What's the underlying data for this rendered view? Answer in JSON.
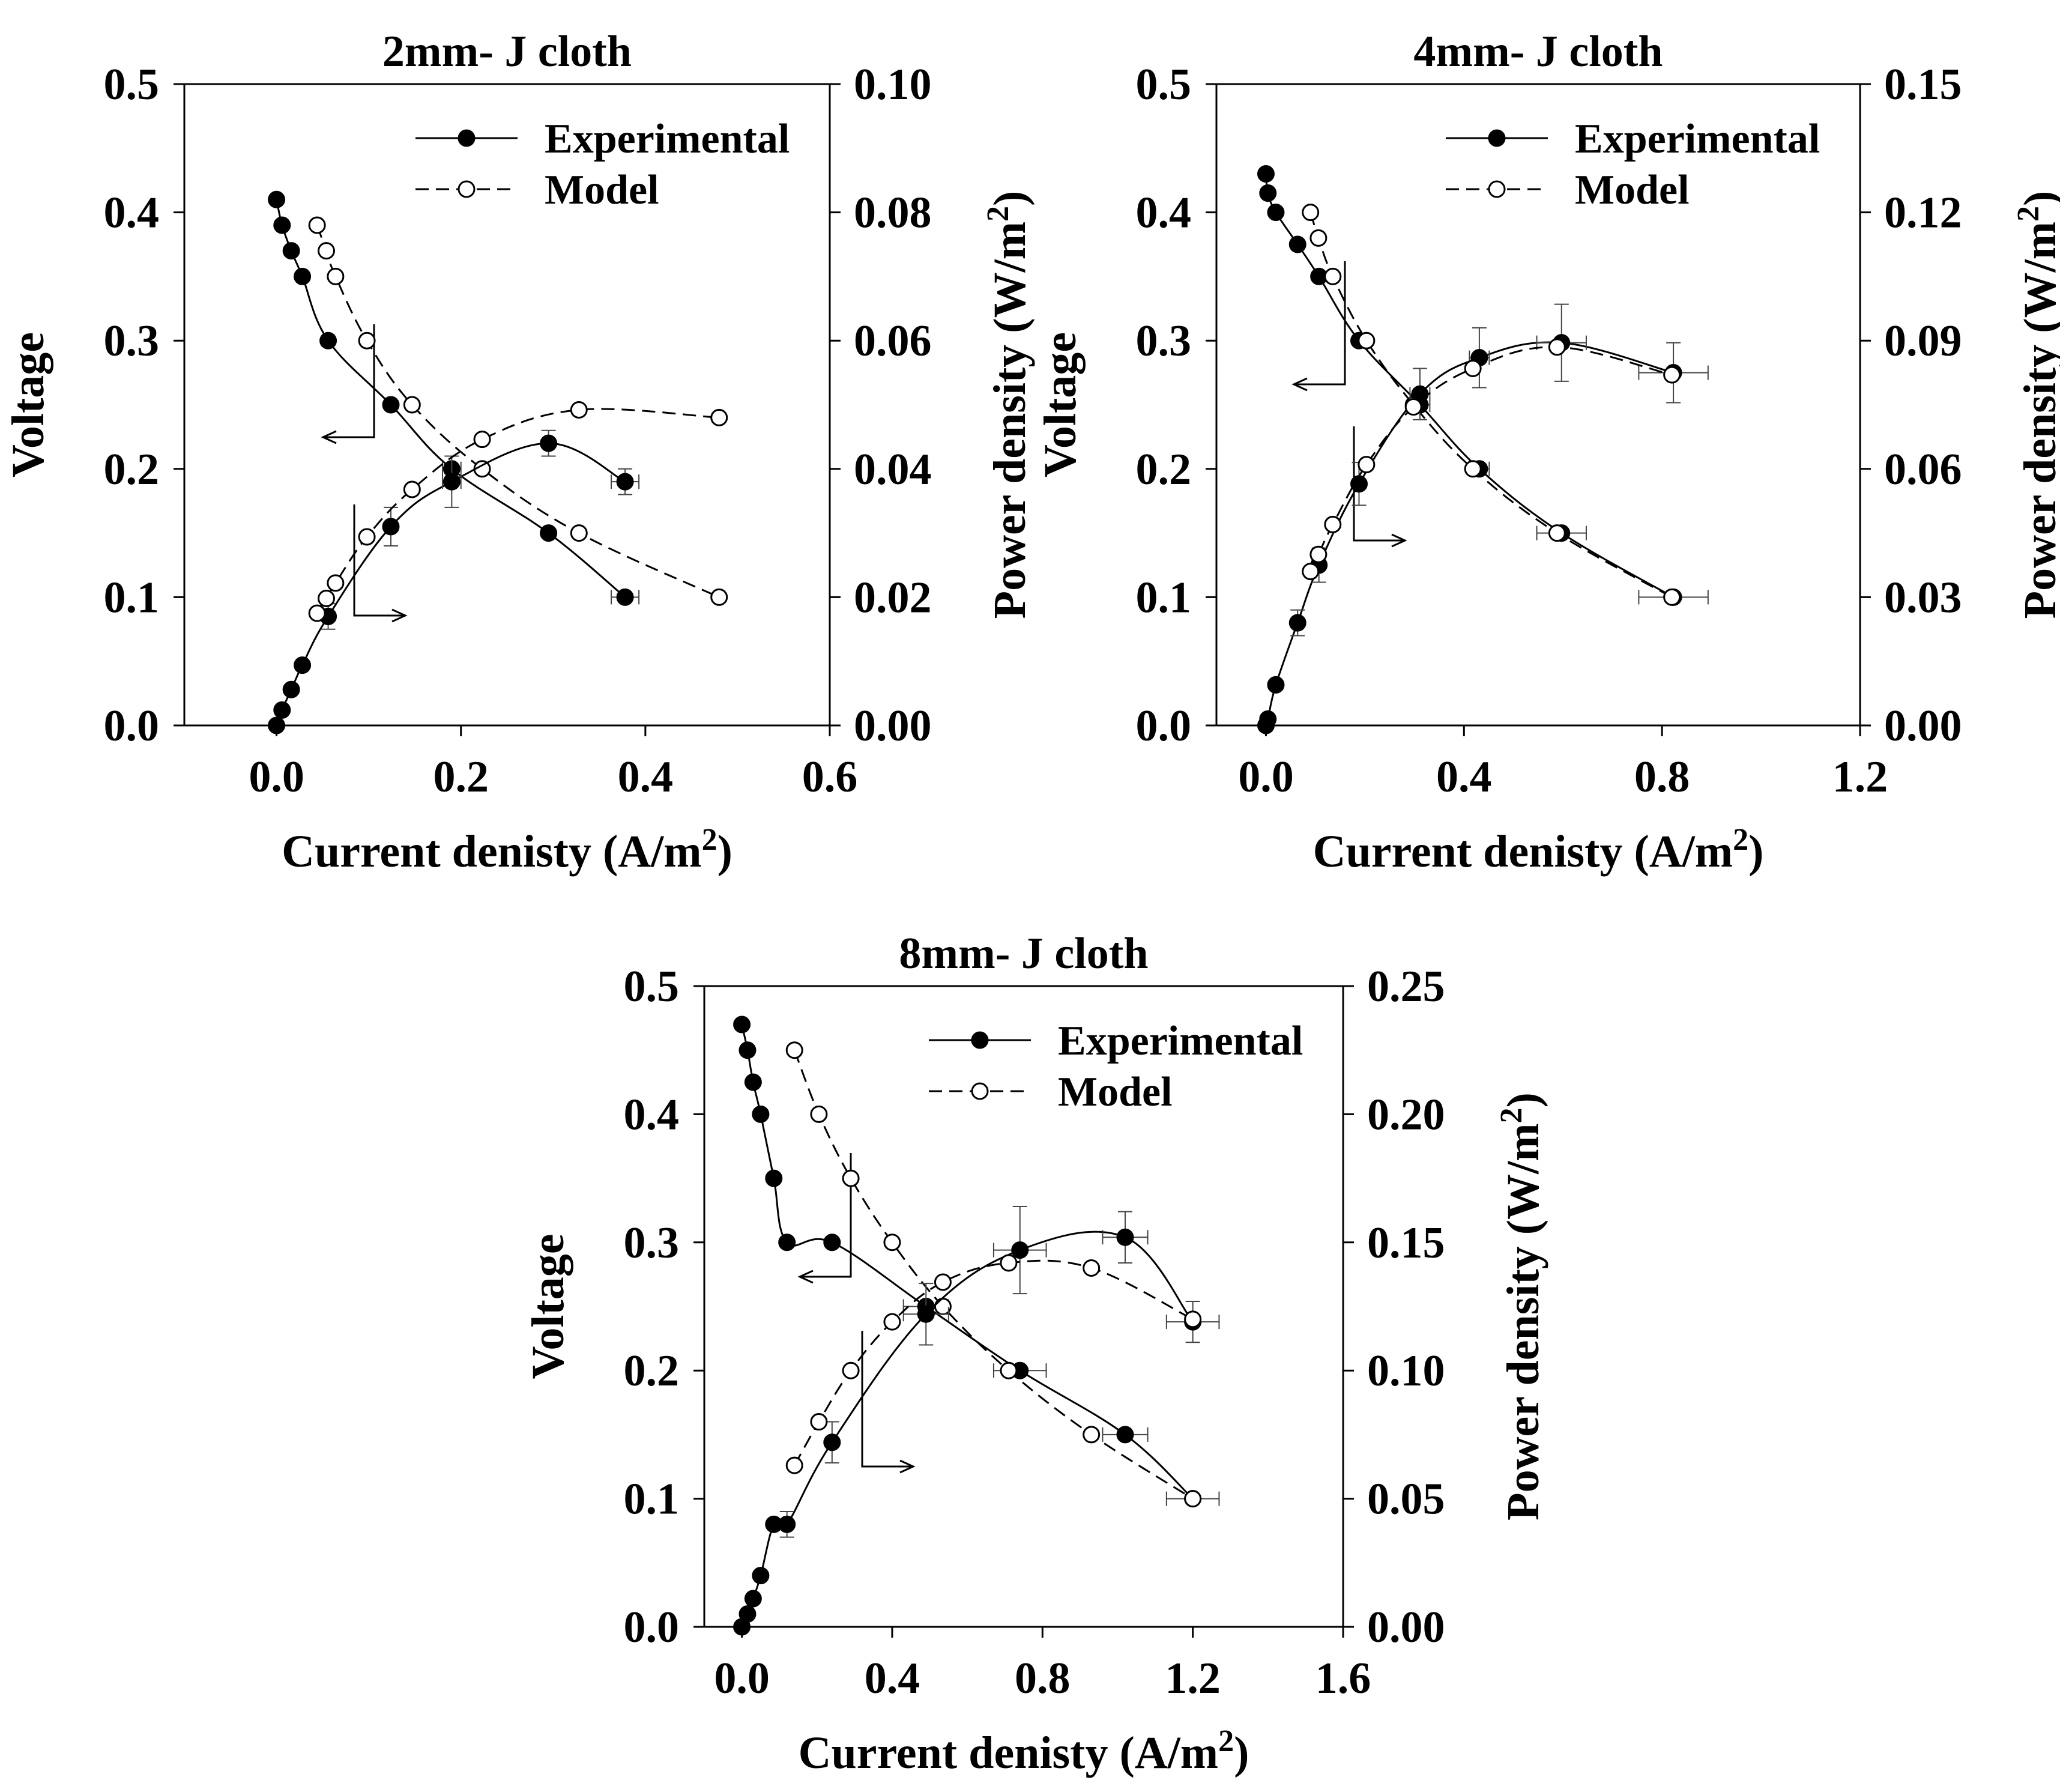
{
  "chart_data": [
    {
      "type": "line",
      "title": "2mm- J cloth",
      "xlabel": "Current denisty (A/m",
      "xlabel_sup": "2",
      "xlabel_end": ")",
      "ylabel": "Voltage",
      "y2label": "Power density (W/m",
      "y2label_sup": "2",
      "y2label_end": ")",
      "xlim": [
        -0.1,
        0.6
      ],
      "ylim": [
        0,
        0.5
      ],
      "y2lim": [
        0,
        0.1
      ],
      "xticks": [
        "0.0",
        "0.2",
        "0.4",
        "0.6"
      ],
      "xtick_values": [
        0,
        0.2,
        0.4,
        0.6
      ],
      "yticks": [
        "0.0",
        "0.1",
        "0.2",
        "0.3",
        "0.4",
        "0.5"
      ],
      "ytick_values": [
        0,
        0.1,
        0.2,
        0.3,
        0.4,
        0.5
      ],
      "y2ticks": [
        "0.00",
        "0.02",
        "0.04",
        "0.06",
        "0.08",
        "0.10"
      ],
      "y2tick_values": [
        0,
        0.02,
        0.04,
        0.06,
        0.08,
        0.1
      ],
      "legend": [
        "Experimental",
        "Model"
      ],
      "legend_position": "top-right",
      "series": [
        {
          "name": "Experimental",
          "axis": "voltage",
          "style": "solid-filled",
          "x": [
            0.0,
            0.006,
            0.016,
            0.028,
            0.056,
            0.124,
            0.19,
            0.295,
            0.378
          ],
          "y": [
            0.41,
            0.39,
            0.37,
            0.35,
            0.3,
            0.25,
            0.2,
            0.15,
            0.1
          ],
          "xerr": [
            0,
            0,
            0,
            0,
            0,
            0,
            0.01,
            0,
            0.015
          ],
          "yerr": [
            0,
            0,
            0,
            0,
            0,
            0,
            0,
            0,
            0
          ]
        },
        {
          "name": "Model",
          "axis": "voltage",
          "style": "dashed-open",
          "x": [
            0.044,
            0.054,
            0.064,
            0.098,
            0.147,
            0.223,
            0.328,
            0.48
          ],
          "y": [
            0.39,
            0.37,
            0.35,
            0.3,
            0.25,
            0.2,
            0.15,
            0.1
          ]
        },
        {
          "name": "Experimental",
          "axis": "power",
          "style": "solid-filled",
          "x": [
            0.0,
            0.006,
            0.016,
            0.028,
            0.056,
            0.124,
            0.19,
            0.295,
            0.378
          ],
          "y": [
            0.0,
            0.0024,
            0.0056,
            0.0094,
            0.017,
            0.031,
            0.038,
            0.044,
            0.038
          ],
          "xerr": [
            0,
            0,
            0,
            0,
            0,
            0,
            0.01,
            0,
            0.015
          ],
          "yerr": [
            0,
            0,
            0,
            0,
            0.002,
            0.003,
            0.004,
            0.002,
            0.002
          ]
        },
        {
          "name": "Model",
          "axis": "power",
          "style": "dashed-open",
          "x": [
            0.044,
            0.054,
            0.064,
            0.098,
            0.147,
            0.223,
            0.328,
            0.48
          ],
          "y": [
            0.0175,
            0.0198,
            0.0222,
            0.0294,
            0.0368,
            0.0446,
            0.0492,
            0.048
          ]
        }
      ]
    },
    {
      "type": "line",
      "title": "4mm- J cloth",
      "xlabel": "Current denisty (A/m",
      "xlabel_sup": "2",
      "xlabel_end": ")",
      "ylabel": "Voltage",
      "y2label": "Power density (W/m",
      "y2label_sup": "2",
      "y2label_end": ")",
      "xlim": [
        -0.1,
        1.2
      ],
      "ylim": [
        0,
        0.5
      ],
      "y2lim": [
        0,
        0.15
      ],
      "xticks": [
        "0.0",
        "0.4",
        "0.8",
        "1.2"
      ],
      "xtick_values": [
        0,
        0.4,
        0.8,
        1.2
      ],
      "yticks": [
        "0.0",
        "0.1",
        "0.2",
        "0.3",
        "0.4",
        "0.5"
      ],
      "ytick_values": [
        0,
        0.1,
        0.2,
        0.3,
        0.4,
        0.5
      ],
      "y2ticks": [
        "0.00",
        "0.03",
        "0.06",
        "0.09",
        "0.12",
        "0.15"
      ],
      "y2tick_values": [
        0,
        0.03,
        0.06,
        0.09,
        0.12,
        0.15
      ],
      "legend": [
        "Experimental",
        "Model"
      ],
      "legend_position": "top-right",
      "series": [
        {
          "name": "Experimental",
          "axis": "voltage",
          "style": "solid-filled",
          "x": [
            0.0,
            0.004,
            0.02,
            0.064,
            0.107,
            0.188,
            0.311,
            0.431,
            0.597,
            0.823
          ],
          "y": [
            0.43,
            0.415,
            0.4,
            0.375,
            0.35,
            0.3,
            0.25,
            0.2,
            0.15,
            0.1
          ],
          "xerr": [
            0,
            0,
            0,
            0,
            0,
            0,
            0.02,
            0.02,
            0.05,
            0.07
          ],
          "yerr": [
            0,
            0,
            0,
            0,
            0,
            0,
            0,
            0,
            0,
            0
          ]
        },
        {
          "name": "Model",
          "axis": "voltage",
          "style": "dashed-open",
          "x": [
            0.09,
            0.106,
            0.135,
            0.203,
            0.298,
            0.418,
            0.588,
            0.82
          ],
          "y": [
            0.4,
            0.38,
            0.35,
            0.3,
            0.25,
            0.2,
            0.15,
            0.1
          ]
        },
        {
          "name": "Experimental",
          "axis": "power",
          "style": "solid-filled",
          "x": [
            0.0,
            0.004,
            0.02,
            0.064,
            0.107,
            0.188,
            0.311,
            0.431,
            0.597,
            0.823
          ],
          "y": [
            0.0,
            0.0015,
            0.0095,
            0.024,
            0.0375,
            0.0565,
            0.0775,
            0.086,
            0.0895,
            0.0825
          ],
          "xerr": [
            0,
            0,
            0,
            0,
            0,
            0,
            0.02,
            0.02,
            0.05,
            0.07
          ],
          "yerr": [
            0,
            0,
            0,
            0.003,
            0.004,
            0.005,
            0.006,
            0.007,
            0.009,
            0.007
          ]
        },
        {
          "name": "Model",
          "axis": "power",
          "style": "dashed-open",
          "x": [
            0.09,
            0.106,
            0.135,
            0.203,
            0.298,
            0.418,
            0.588,
            0.82
          ],
          "y": [
            0.036,
            0.04,
            0.047,
            0.061,
            0.0745,
            0.0835,
            0.0885,
            0.082
          ]
        }
      ]
    },
    {
      "type": "line",
      "title": "8mm- J cloth",
      "xlabel": "Current denisty (A/m",
      "xlabel_sup": "2",
      "xlabel_end": ")",
      "ylabel": "Voltage",
      "y2label": "Power density (W/m",
      "y2label_sup": "2",
      "y2label_end": ")",
      "xlim": [
        -0.1,
        1.6
      ],
      "ylim": [
        0,
        0.5
      ],
      "y2lim": [
        0,
        0.25
      ],
      "xticks": [
        "0.0",
        "0.4",
        "0.8",
        "1.2",
        "1.6"
      ],
      "xtick_values": [
        0,
        0.4,
        0.8,
        1.2,
        1.6
      ],
      "yticks": [
        "0.0",
        "0.1",
        "0.2",
        "0.3",
        "0.4",
        "0.5"
      ],
      "ytick_values": [
        0,
        0.1,
        0.2,
        0.3,
        0.4,
        0.5
      ],
      "y2ticks": [
        "0.00",
        "0.05",
        "0.10",
        "0.15",
        "0.20",
        "0.25"
      ],
      "y2tick_values": [
        0,
        0.05,
        0.1,
        0.15,
        0.2,
        0.25
      ],
      "legend": [
        "Experimental",
        "Model"
      ],
      "legend_position": "top-right",
      "series": [
        {
          "name": "Experimental",
          "axis": "voltage",
          "style": "solid-filled",
          "x": [
            0.0,
            0.015,
            0.03,
            0.05,
            0.085,
            0.12,
            0.24,
            0.49,
            0.74,
            1.02,
            1.2
          ],
          "y": [
            0.47,
            0.45,
            0.425,
            0.4,
            0.35,
            0.3,
            0.3,
            0.25,
            0.2,
            0.15,
            0.1
          ],
          "xerr": [
            0,
            0,
            0,
            0,
            0,
            0,
            0,
            0.06,
            0.07,
            0.06,
            0.07
          ],
          "yerr": [
            0,
            0,
            0,
            0,
            0,
            0,
            0,
            0,
            0,
            0,
            0
          ]
        },
        {
          "name": "Model",
          "axis": "voltage",
          "style": "dashed-open",
          "x": [
            0.14,
            0.205,
            0.29,
            0.4,
            0.535,
            0.71,
            0.93,
            1.2
          ],
          "y": [
            0.45,
            0.4,
            0.35,
            0.3,
            0.25,
            0.2,
            0.15,
            0.1
          ]
        },
        {
          "name": "Experimental",
          "axis": "power",
          "style": "solid-filled",
          "x": [
            0.0,
            0.015,
            0.03,
            0.05,
            0.085,
            0.12,
            0.24,
            0.49,
            0.74,
            1.02,
            1.2
          ],
          "y": [
            0.0,
            0.005,
            0.011,
            0.02,
            0.04,
            0.04,
            0.072,
            0.122,
            0.147,
            0.152,
            0.119
          ],
          "xerr": [
            0,
            0,
            0,
            0,
            0,
            0,
            0,
            0.06,
            0.07,
            0.06,
            0.07
          ],
          "yerr": [
            0,
            0,
            0,
            0,
            0,
            0.005,
            0.008,
            0.012,
            0.017,
            0.01,
            0.008
          ]
        },
        {
          "name": "Model",
          "axis": "power",
          "style": "dashed-open",
          "x": [
            0.14,
            0.205,
            0.29,
            0.4,
            0.535,
            0.71,
            0.93,
            1.2
          ],
          "y": [
            0.063,
            0.08,
            0.1,
            0.119,
            0.1345,
            0.142,
            0.14,
            0.12
          ]
        }
      ]
    }
  ]
}
